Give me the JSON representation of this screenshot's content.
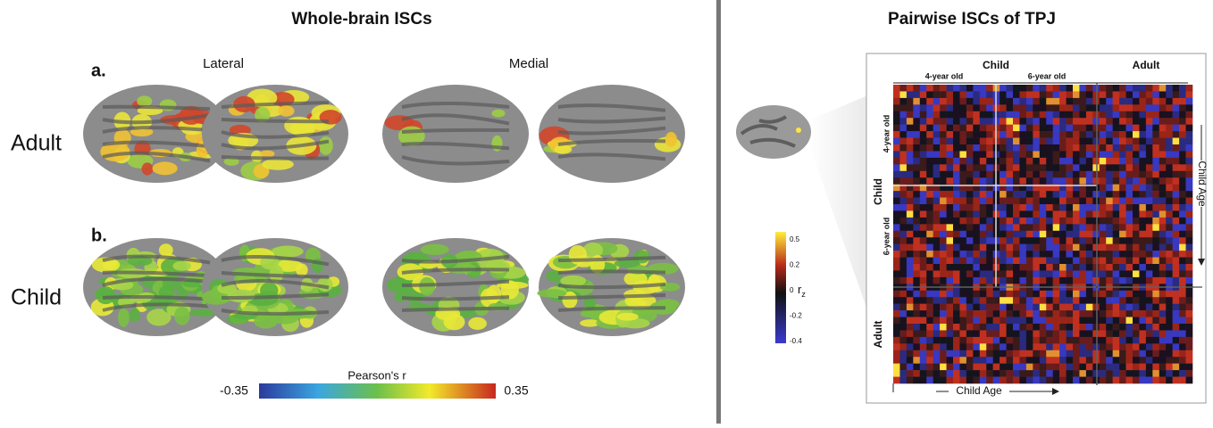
{
  "left_panel": {
    "title": "Whole-brain ISCs",
    "row_a": "a.",
    "row_b": "b.",
    "col_lateral": "Lateral",
    "col_medial": "Medial",
    "row_adult": "Adult",
    "row_child": "Child",
    "colorbar": {
      "label": "Pearson's r",
      "min": "-0.35",
      "max": "0.35"
    }
  },
  "right_panel": {
    "title": "Pairwise ISCs of TPJ",
    "top_child": "Child",
    "top_adult": "Adult",
    "top_4": "4-year old",
    "top_6": "6-year old",
    "side_child": "Child",
    "side_adult": "Adult",
    "side_4": "4-year old",
    "side_6": "6-year old",
    "right_axis": "Child Age",
    "bottom_axis": "Child Age",
    "colorbar": {
      "ticks": [
        "0.5",
        "0.2",
        "0",
        "-0.2",
        "-0.4"
      ],
      "unit": "r",
      "unit_subscript": "z"
    }
  }
}
